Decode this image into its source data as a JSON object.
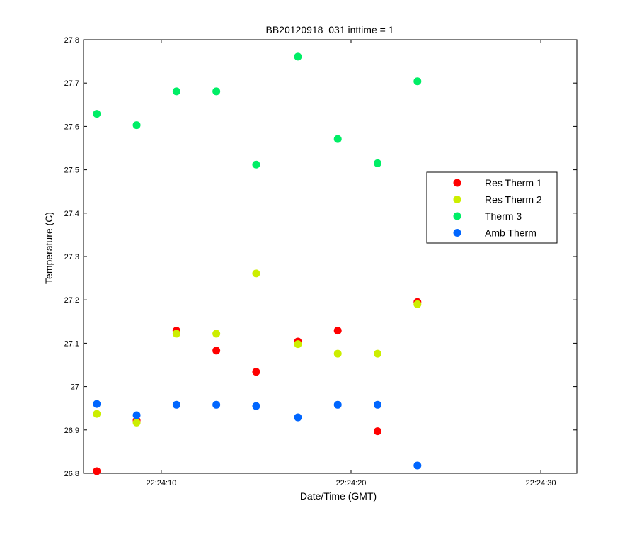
{
  "chart_data": {
    "type": "scatter",
    "title": "BB20120918_031 inttime = 1",
    "xlabel": "Date/Time (GMT)",
    "ylabel": "Temperature (C)",
    "xlim": [
      5.9,
      31.9
    ],
    "ylim": [
      26.8,
      27.8
    ],
    "x_ticks": [
      {
        "value": 10,
        "label": "22:24:10"
      },
      {
        "value": 20,
        "label": "22:24:20"
      },
      {
        "value": 30,
        "label": "22:24:30"
      }
    ],
    "y_ticks": [
      {
        "value": 26.8,
        "label": "26.8"
      },
      {
        "value": 26.9,
        "label": "26.9"
      },
      {
        "value": 27.0,
        "label": "27"
      },
      {
        "value": 27.1,
        "label": "27.1"
      },
      {
        "value": 27.2,
        "label": "27.2"
      },
      {
        "value": 27.3,
        "label": "27.3"
      },
      {
        "value": 27.4,
        "label": "27.4"
      },
      {
        "value": 27.5,
        "label": "27.5"
      },
      {
        "value": 27.6,
        "label": "27.6"
      },
      {
        "value": 27.7,
        "label": "27.7"
      },
      {
        "value": 27.8,
        "label": "27.8"
      }
    ],
    "grid": false,
    "legend_position": "right-middle",
    "x": [
      6.6,
      8.7,
      10.8,
      12.9,
      15.0,
      17.2,
      19.3,
      21.4,
      23.5
    ],
    "series": [
      {
        "name": "Res Therm 1",
        "color": "#ff0000",
        "values": [
          26.805,
          26.922,
          27.129,
          27.083,
          27.034,
          27.104,
          27.129,
          26.897,
          27.195
        ]
      },
      {
        "name": "Res Therm 2",
        "color": "#ccee00",
        "values": [
          26.937,
          26.917,
          27.122,
          27.122,
          27.261,
          27.098,
          27.076,
          27.076,
          27.19
        ]
      },
      {
        "name": "Therm 3",
        "color": "#00ee66",
        "values": [
          27.629,
          27.603,
          27.681,
          27.681,
          27.512,
          27.761,
          27.571,
          27.515,
          27.704
        ]
      },
      {
        "name": "Amb Therm",
        "color": "#0066ff",
        "values": [
          26.96,
          26.934,
          26.958,
          26.958,
          26.955,
          26.929,
          26.958,
          26.958,
          26.818
        ]
      }
    ]
  }
}
